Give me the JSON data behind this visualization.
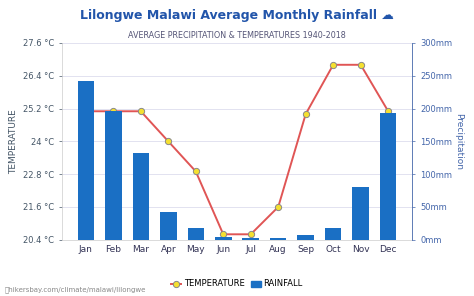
{
  "months": [
    "Jan",
    "Feb",
    "Mar",
    "Apr",
    "May",
    "Jun",
    "Jul",
    "Aug",
    "Sep",
    "Oct",
    "Nov",
    "Dec"
  ],
  "rainfall_mm": [
    242,
    196,
    132,
    43,
    18,
    4,
    2,
    3,
    8,
    18,
    80,
    193
  ],
  "temperature_c": [
    25.1,
    25.1,
    25.1,
    24.0,
    22.9,
    20.6,
    20.6,
    21.6,
    25.0,
    26.8,
    26.8,
    25.1
  ],
  "title": "Lilongwe Malawi Average Monthly Rainfall ☁",
  "subtitle": "AVERAGE PRECIPITATION & TEMPERATURES 1940-2018",
  "bar_color": "#1a6fc4",
  "line_color": "#e05555",
  "marker_face": "#f5e030",
  "marker_edge": "#888888",
  "left_ylabel": "TEMPERATURE",
  "right_ylabel": "Precipitation",
  "temp_yticks": [
    20.4,
    21.6,
    22.8,
    24.0,
    25.2,
    26.4,
    27.6
  ],
  "temp_ytick_labels": [
    "20.4 °C",
    "21.6 °C",
    "22.8 °C",
    "24 °C",
    "25.2 °C",
    "26.4 °C",
    "27.6 °C"
  ],
  "precip_yticks": [
    0,
    50,
    100,
    150,
    200,
    250,
    300
  ],
  "precip_ytick_labels": [
    "0mm",
    "50mm",
    "100mm",
    "150mm",
    "200mm",
    "250mm",
    "300mm"
  ],
  "temp_ylim": [
    20.4,
    27.6
  ],
  "precip_ylim": [
    0,
    300
  ],
  "bg_color": "#ffffff",
  "title_color": "#2255aa",
  "subtitle_color": "#555577",
  "axis_label_color": "#4466aa",
  "watermark": "⭐hikersbay.com/climate/malawi/lilongwe",
  "legend_temp": "TEMPERATURE",
  "legend_rain": "RAINFALL",
  "grid_color": "#ddddee",
  "tick_color": "#4466aa"
}
